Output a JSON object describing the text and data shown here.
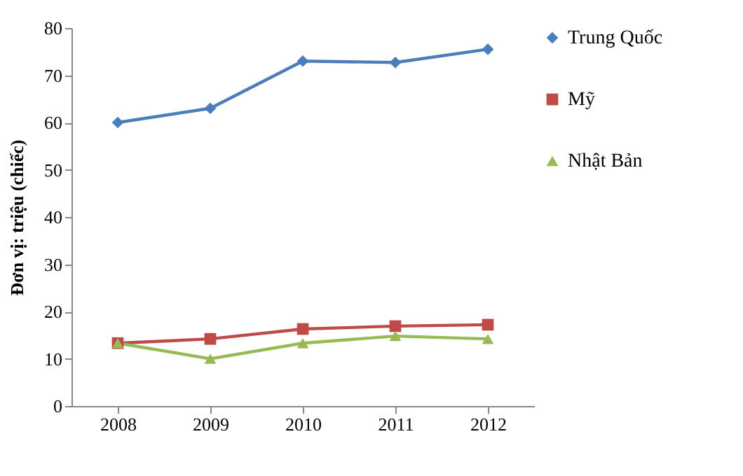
{
  "chart_data": {
    "type": "line",
    "ylabel": "Đơn vị: triệu (chiếc)",
    "categories": [
      "2008",
      "2009",
      "2010",
      "2011",
      "2012"
    ],
    "series": [
      {
        "name": "Trung Quốc",
        "color": "#4a7ebb",
        "marker": "diamond",
        "values": [
          60,
          63,
          73,
          72.7,
          75.5
        ]
      },
      {
        "name": "Mỹ",
        "color": "#be4b48",
        "marker": "square",
        "values": [
          13.3,
          14.2,
          16.3,
          16.9,
          17.2
        ]
      },
      {
        "name": "Nhật Bản",
        "color": "#98b954",
        "marker": "triangle",
        "values": [
          13.3,
          10,
          13.3,
          14.8,
          14.2
        ]
      }
    ],
    "ylim": [
      0,
      80
    ],
    "yticks": [
      0,
      10,
      20,
      30,
      40,
      50,
      60,
      70,
      80
    ],
    "grid": false,
    "legend": "right",
    "line_style": "solid"
  }
}
